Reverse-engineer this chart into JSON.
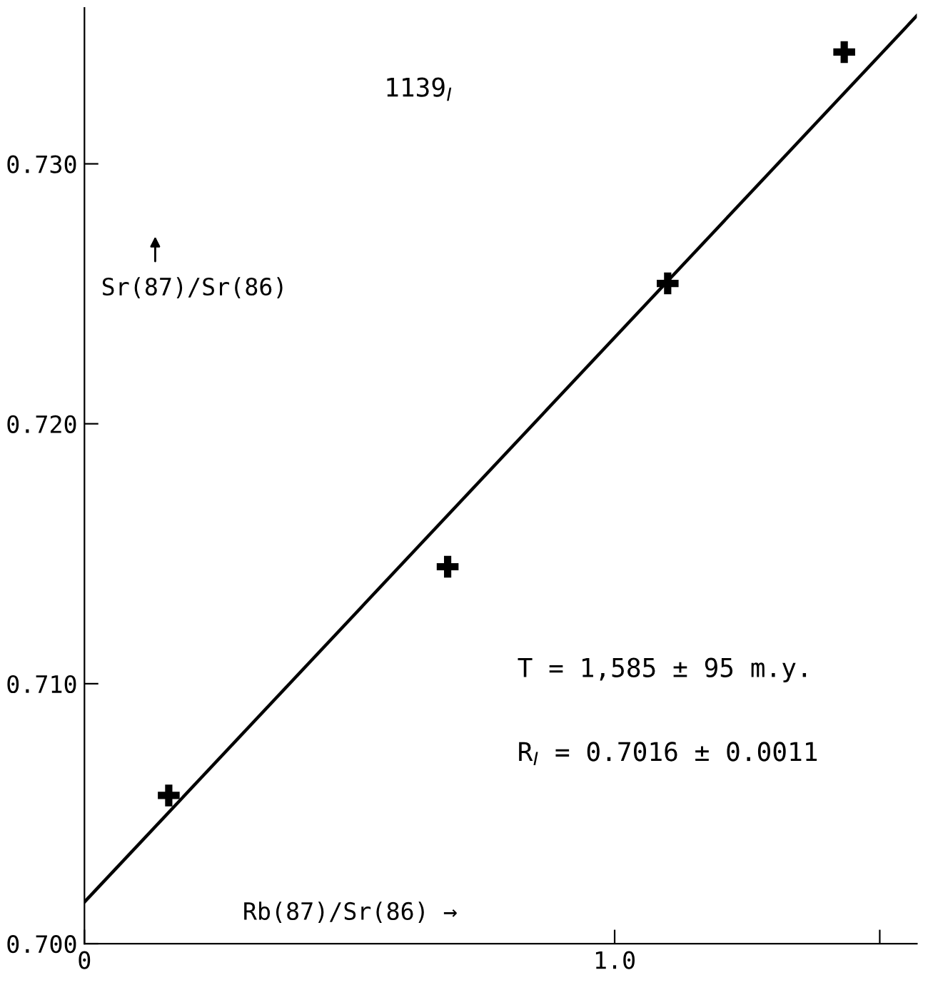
{
  "chart_data": {
    "type": "scatter",
    "title": "1139$_{I}$",
    "xlabel": "Rb(87)/Sr(86) →",
    "ylabel": "Sr(87)/Sr(86)",
    "annotations": [
      "T = 1,585 ± 95 m.y.",
      "R$_{I}$ = 0.7016 ± 0.0011"
    ],
    "series": [
      {
        "color": "#000000",
        "marker": "cross",
        "x": [
          0.159,
          0.685,
          1.1,
          1.433
        ],
        "values": [
          0.7057,
          0.7145,
          0.7254,
          0.7343
        ]
      },
      {
        "type": "line",
        "color": "#000000",
        "marker": "none",
        "line_style": "solid",
        "x": [
          0,
          1.57
        ],
        "values": [
          0.7016,
          0.7357
        ]
      }
    ],
    "xlim": [
      0,
      1.57
    ],
    "ylim": [
      0.7,
      0.736
    ],
    "xticks": [
      0,
      {
        "value": 1.0,
        "label": "1.0"
      },
      {
        "value": 1.5,
        "label": null
      }
    ],
    "yticks": [
      {
        "value": 0.7,
        "label": "0.700"
      },
      {
        "value": 0.71,
        "label": "0.710"
      },
      {
        "value": 0.72,
        "label": "0.720"
      },
      {
        "value": 0.73,
        "label": "0.730"
      }
    ],
    "grid": false,
    "legend": false
  }
}
